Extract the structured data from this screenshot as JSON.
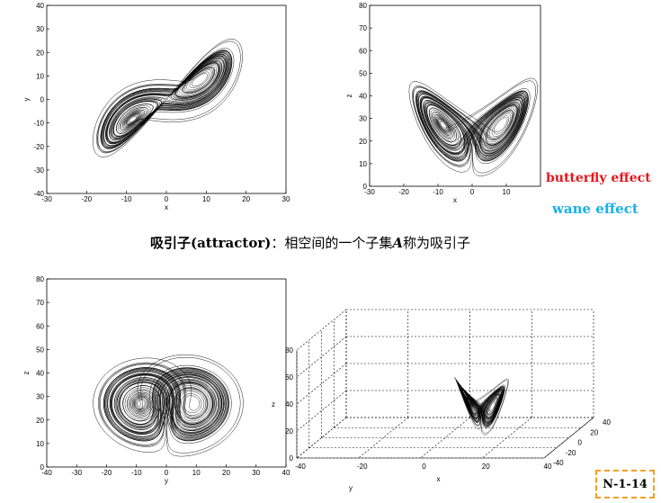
{
  "notes": {
    "butterfly": "butterfly effect",
    "butterfly_color": "#e8141c",
    "wane": "wane effect",
    "wane_color": "#1ab0e8"
  },
  "caption": {
    "term": "吸引子",
    "english": "(attractor)",
    "colon": "：",
    "text_before": "相空间的一个子集",
    "symbol": "A",
    "text_after": "称为吸引子"
  },
  "page_number": "N-1-14",
  "chart_data": [
    {
      "type": "line",
      "title": "",
      "xlabel": "x",
      "ylabel": "y",
      "xlim": [
        -30,
        30
      ],
      "ylim": [
        -40,
        40
      ],
      "xticks": [
        "-30",
        "-20",
        "-10",
        "0",
        "10",
        "20",
        "30"
      ],
      "yticks": [
        "-40",
        "-30",
        "-20",
        "-10",
        "0",
        "10",
        "20",
        "30",
        "40"
      ],
      "projection": [
        "x",
        "y"
      ]
    },
    {
      "type": "line",
      "title": "",
      "xlabel": "x",
      "ylabel": "z",
      "xlim": [
        -30,
        20
      ],
      "ylim": [
        0,
        80
      ],
      "xticks": [
        "-30",
        "-20",
        "-10",
        "0",
        "10"
      ],
      "yticks": [
        "0",
        "10",
        "20",
        "30",
        "40",
        "50",
        "60",
        "70",
        "80"
      ],
      "projection": [
        "x",
        "z"
      ]
    },
    {
      "type": "line",
      "title": "",
      "xlabel": "y",
      "ylabel": "z",
      "xlim": [
        -40,
        40
      ],
      "ylim": [
        0,
        80
      ],
      "xticks": [
        "-40",
        "-30",
        "-20",
        "-10",
        "0",
        "10",
        "20",
        "30",
        "40"
      ],
      "yticks": [
        "0",
        "10",
        "20",
        "30",
        "40",
        "50",
        "60",
        "70",
        "80"
      ],
      "projection": [
        "y",
        "z"
      ]
    },
    {
      "type": "line",
      "title": "",
      "xlabel": "x",
      "ylabel": "y",
      "zlabel": "z",
      "xlim": [
        -40,
        40
      ],
      "ylim": [
        -40,
        40
      ],
      "zlim": [
        0,
        80
      ],
      "xticks": [
        "-40",
        "-20",
        "0",
        "20",
        "40"
      ],
      "yticks": [
        "-40",
        "-20",
        "0",
        "20",
        "40"
      ],
      "zticks": [
        "0",
        "20",
        "40",
        "60",
        "80"
      ],
      "projection": "3d"
    }
  ]
}
